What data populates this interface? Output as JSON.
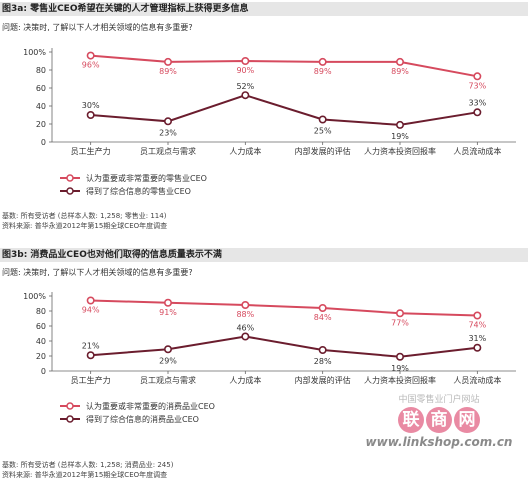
{
  "chart_data": [
    {
      "type": "line",
      "title": "图3a: 零售业CEO希望在关键的人才管理指标上获得更多信息",
      "question": "问题: 决策时, 了解以下人才相关领域的信息有多重要?",
      "categories": [
        "员工生产力",
        "员工观点与需求",
        "人力成本",
        "内部发展的评估",
        "人力资本投资回报率",
        "人员流动成本"
      ],
      "yticks": [
        "100%",
        "80",
        "60",
        "40",
        "20",
        "0"
      ],
      "ylim": [
        0,
        100
      ],
      "series": [
        {
          "name": "认为重要或非常重要的零售业CEO",
          "values": [
            96,
            89,
            90,
            89,
            89,
            73
          ],
          "labels": [
            "96%",
            "89%",
            "90%",
            "89%",
            "89%",
            "73%"
          ],
          "color": "#d64a5e"
        },
        {
          "name": "得到了综合信息的零售业CEO",
          "values": [
            30,
            23,
            52,
            25,
            19,
            33
          ],
          "labels": [
            "30%",
            "23%",
            "52%",
            "25%",
            "19%",
            "33%"
          ],
          "color": "#6b1d2e"
        }
      ],
      "base": "基数: 所有受访者 (总样本人数: 1,258; 零售业: 114)",
      "source": "资料来源: 普华永道2012年第15期全球CEO年度调查"
    },
    {
      "type": "line",
      "title": "图3b: 消费品业CEO也对他们取得的信息质量表示不满",
      "question": "问题: 决策时, 了解以下人才相关领域的信息有多重要?",
      "categories": [
        "员工生产力",
        "员工观点与需求",
        "人力成本",
        "内部发展的评估",
        "人力资本投资回报率",
        "人员流动成本"
      ],
      "yticks": [
        "100%",
        "80",
        "60",
        "40",
        "20",
        "0"
      ],
      "ylim": [
        0,
        100
      ],
      "series": [
        {
          "name": "认为重要或非常重要的消费品业CEO",
          "values": [
            94,
            91,
            88,
            84,
            77,
            74
          ],
          "labels": [
            "94%",
            "91%",
            "88%",
            "84%",
            "77%",
            "74%"
          ],
          "color": "#d64a5e"
        },
        {
          "name": "得到了综合信息的消费品业CEO",
          "values": [
            21,
            29,
            46,
            28,
            19,
            31
          ],
          "labels": [
            "21%",
            "29%",
            "46%",
            "28%",
            "19%",
            "31%"
          ],
          "color": "#6b1d2e"
        }
      ],
      "base": "基数: 所有受访者 (总样本人数: 1,258; 消费品业: 245)",
      "source": "资料来源: 普华永道2012年第15期全球CEO年度调查"
    }
  ],
  "watermark": {
    "line1": "中国零售业门户网站",
    "chars": [
      "联",
      "商",
      "网"
    ],
    "url": "www.linkshop.com.cn"
  }
}
